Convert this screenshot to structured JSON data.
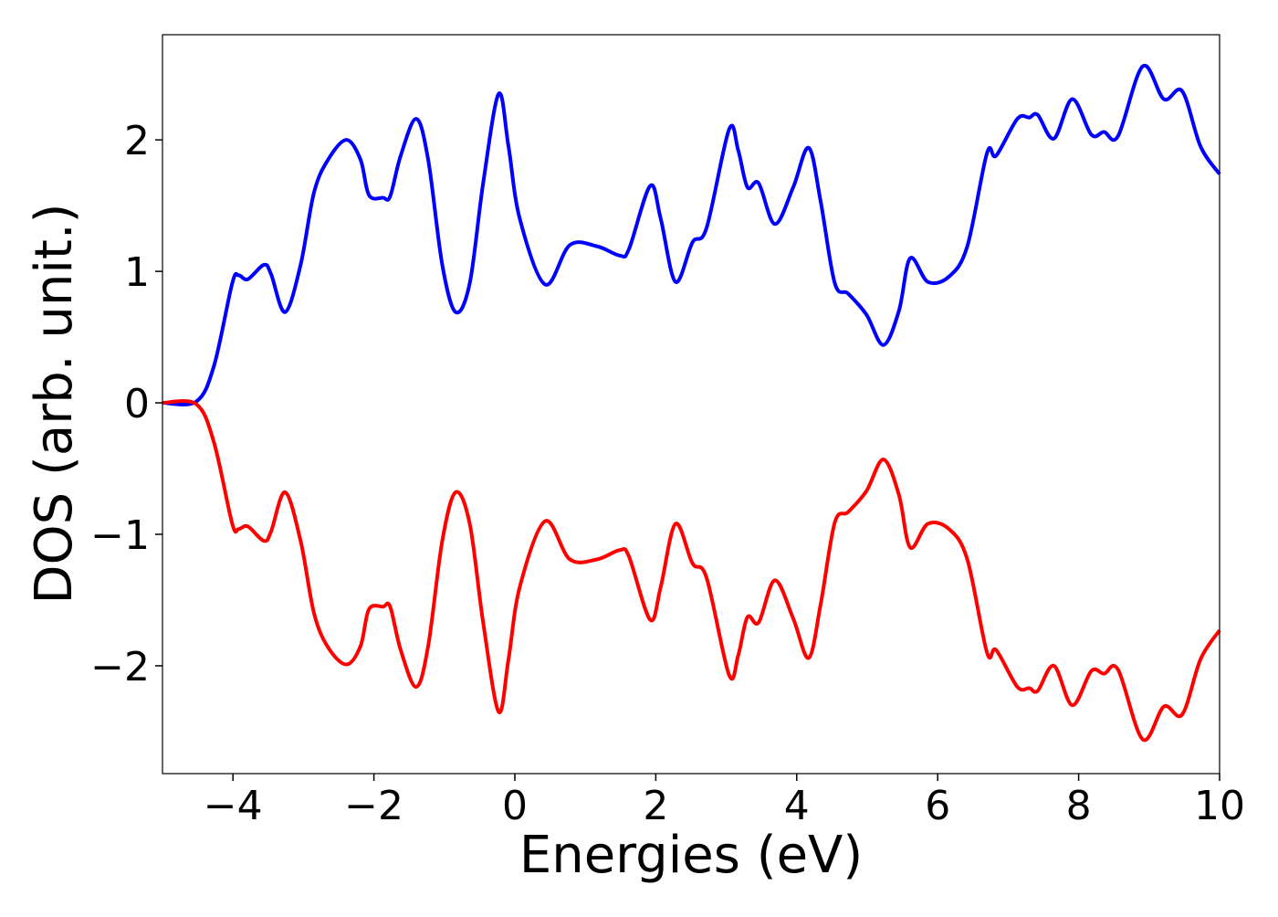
{
  "chart_data": {
    "type": "line",
    "xlabel": "Energies (eV)",
    "ylabel": "DOS (arb. unit.)",
    "x": [
      -5,
      -4.52,
      -4.27,
      -4.01,
      -3.92,
      -3.79,
      -3.56,
      -3.46,
      -3.26,
      -3.04,
      -2.85,
      -2.65,
      -2.39,
      -2.19,
      -2.07,
      -1.87,
      -1.77,
      -1.62,
      -1.4,
      -1.23,
      -1.03,
      -0.84,
      -0.64,
      -0.45,
      -0.23,
      -0.09,
      0.07,
      0.43,
      0.78,
      1.17,
      1.49,
      1.62,
      1.92,
      2.07,
      2.28,
      2.52,
      2.72,
      3.04,
      3.17,
      3.3,
      3.46,
      3.69,
      3.95,
      4.17,
      4.34,
      4.54,
      4.73,
      4.99,
      5.23,
      5.45,
      5.61,
      5.86,
      6.16,
      6.42,
      6.7,
      6.83,
      7.13,
      7.3,
      7.42,
      7.65,
      7.91,
      8.18,
      8.36,
      8.56,
      8.91,
      9.21,
      9.47,
      9.73,
      10
    ],
    "series": [
      {
        "color": "#0000ff",
        "values": [
          0,
          0.01,
          0.28,
          0.91,
          0.97,
          0.94,
          1.05,
          0.98,
          0.69,
          1.05,
          1.6,
          1.85,
          2.0,
          1.85,
          1.58,
          1.56,
          1.57,
          1.88,
          2.16,
          1.85,
          1.05,
          0.69,
          0.91,
          1.67,
          2.35,
          1.95,
          1.4,
          0.9,
          1.2,
          1.19,
          1.12,
          1.17,
          1.65,
          1.4,
          0.92,
          1.22,
          1.33,
          2.08,
          1.92,
          1.64,
          1.67,
          1.36,
          1.64,
          1.94,
          1.53,
          0.91,
          0.83,
          0.67,
          0.44,
          0.7,
          1.1,
          0.92,
          0.96,
          1.19,
          1.9,
          1.88,
          2.16,
          2.17,
          2.19,
          2.01,
          2.31,
          2.04,
          2.06,
          2.03,
          2.56,
          2.31,
          2.37,
          1.95,
          1.74
        ]
      },
      {
        "color": "#ff0000",
        "values": [
          0,
          -0.01,
          -0.3,
          -0.92,
          -0.96,
          -0.94,
          -1.05,
          -0.98,
          -0.68,
          -1.05,
          -1.6,
          -1.86,
          -1.99,
          -1.85,
          -1.57,
          -1.55,
          -1.55,
          -1.88,
          -2.16,
          -1.85,
          -1.05,
          -0.68,
          -0.92,
          -1.67,
          -2.35,
          -1.95,
          -1.4,
          -0.9,
          -1.19,
          -1.19,
          -1.12,
          -1.17,
          -1.65,
          -1.4,
          -0.92,
          -1.22,
          -1.33,
          -2.07,
          -1.92,
          -1.63,
          -1.67,
          -1.35,
          -1.64,
          -1.94,
          -1.53,
          -0.91,
          -0.83,
          -0.67,
          -0.43,
          -0.7,
          -1.1,
          -0.92,
          -0.96,
          -1.19,
          -1.9,
          -1.88,
          -2.16,
          -2.17,
          -2.19,
          -2.0,
          -2.3,
          -2.04,
          -2.06,
          -2.03,
          -2.56,
          -2.31,
          -2.37,
          -1.95,
          -1.73
        ]
      }
    ],
    "xlim": [
      -5,
      10
    ],
    "xticks": [
      {
        "value": -4,
        "label": "−4"
      },
      {
        "value": -2,
        "label": "−2"
      },
      0,
      2,
      4,
      6,
      8,
      10
    ],
    "ylim": [
      -2.82,
      2.8
    ],
    "yticks": [
      {
        "value": -2,
        "label": "−2"
      },
      {
        "value": -1,
        "label": "−1"
      },
      0,
      1,
      2
    ],
    "grid": false
  }
}
